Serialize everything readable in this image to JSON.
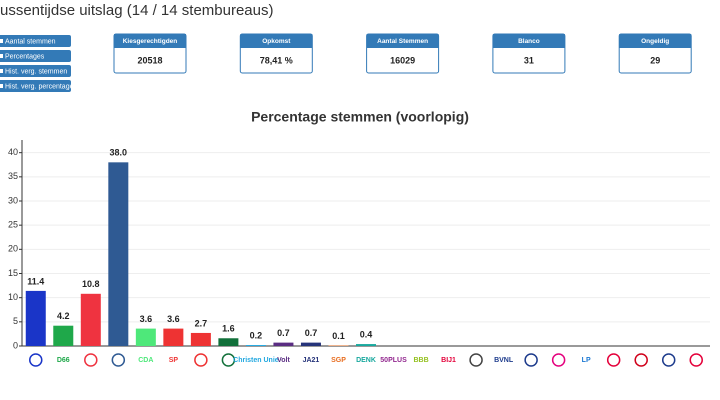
{
  "header": {
    "title": "ussentijdse uitslag (14 / 14 stembureaus)"
  },
  "buttons": [
    "Aantal stemmen",
    "Percentages",
    "Hist. verg. stemmen",
    "Hist. verg. percentages"
  ],
  "stats": [
    {
      "label": "Kiesgerechtigden",
      "value": "20518"
    },
    {
      "label": "Opkomst",
      "value": "78,41 %"
    },
    {
      "label": "Aantal Stemmen",
      "value": "16029"
    },
    {
      "label": "Blanco",
      "value": "31"
    },
    {
      "label": "Ongeldig",
      "value": "29"
    }
  ],
  "chart_data": {
    "type": "bar",
    "title": "Percentage stemmen (voorlopig)",
    "categories": [
      null,
      "D66",
      null,
      null,
      "CDA",
      "SP",
      null,
      null,
      "Christen Unie",
      "Volt",
      "JA21",
      "SGP",
      "DENK",
      "50PLUS",
      "BBB",
      "BIJ1",
      null,
      "BVNL",
      null,
      null,
      "LP",
      null,
      null,
      null,
      null
    ],
    "values": [
      11.4,
      4.2,
      10.8,
      38.0,
      3.6,
      3.6,
      2.7,
      1.6,
      0.2,
      0.7,
      0.7,
      0.1,
      0.4,
      0,
      0,
      0,
      0,
      0,
      0,
      0,
      0,
      0,
      0,
      0,
      0
    ],
    "value_labels": [
      "11.4",
      "4.2",
      "10.8",
      "38.0",
      "3.6",
      "3.6",
      "2.7",
      "1.6",
      "0.2",
      "0.7",
      "0.7",
      "0.1",
      "0.4",
      null,
      null,
      null,
      null,
      null,
      null,
      null,
      null,
      null,
      null,
      null,
      null
    ],
    "colors": [
      "#1a35c8",
      "#1fa84a",
      "#ef3340",
      "#2f5a93",
      "#4ee87a",
      "#ee3333",
      "#ee3333",
      "#11703a",
      "#22a8e0",
      "#5a2d82",
      "#26347a",
      "#e86d1f",
      "#18a89e",
      "#92278f",
      "#94c11f",
      "#e4003a",
      "#444444",
      "#1d3b8c",
      "#1d3b8c",
      "#e4007d",
      "#1a77d2",
      "#e4003a",
      "#d0021b",
      "#1d3b8c",
      "#e4003a"
    ],
    "ylim": [
      0,
      42
    ],
    "yticks": [
      0,
      5,
      10,
      15,
      20,
      25,
      30,
      35,
      40
    ],
    "grid": true
  }
}
